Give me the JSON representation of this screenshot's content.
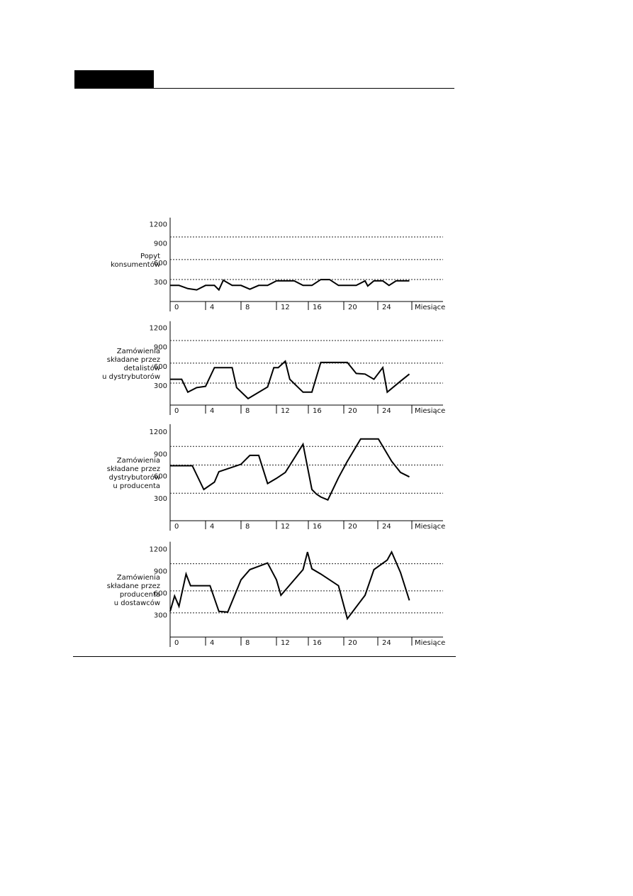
{
  "chart_data": [
    {
      "type": "line",
      "ylabel": [
        "Popyt",
        "konsumentów"
      ],
      "xlabel": "Miesiące",
      "x_ticks": [
        "0",
        "4",
        "8",
        "12",
        "16",
        "20",
        "24"
      ],
      "y_ticks": [
        "1200",
        "900",
        "600",
        "300"
      ],
      "ylim": [
        0,
        1300
      ],
      "gridlines": [
        1000,
        650,
        340
      ],
      "series": [
        {
          "x": [
            0,
            1,
            2,
            3,
            4,
            5,
            5.5,
            6,
            7,
            8,
            9,
            10,
            11,
            12,
            13,
            14,
            15,
            16,
            17,
            18,
            19,
            20,
            21,
            22,
            22.3,
            23,
            24,
            24.7,
            25.5,
            27
          ],
          "y": [
            250,
            250,
            200,
            180,
            250,
            250,
            180,
            330,
            250,
            250,
            190,
            250,
            250,
            320,
            320,
            320,
            250,
            250,
            340,
            340,
            250,
            250,
            250,
            320,
            240,
            320,
            320,
            250,
            320,
            320
          ]
        }
      ]
    },
    {
      "type": "line",
      "ylabel": [
        "Zamówienia",
        "składane przez",
        "detalistów",
        "u dystrybutorów"
      ],
      "xlabel": "Miesiące",
      "x_ticks": [
        "0",
        "4",
        "8",
        "12",
        "16",
        "20",
        "24"
      ],
      "y_ticks": [
        "1200",
        "900",
        "600",
        "300"
      ],
      "ylim": [
        0,
        1300
      ],
      "gridlines": [
        1000,
        650,
        340
      ],
      "series": [
        {
          "x": [
            0,
            1.3,
            2,
            3,
            4,
            5,
            7,
            7.5,
            8.8,
            11,
            11.7,
            12.2,
            13,
            13.5,
            15,
            16,
            17,
            20,
            21,
            22,
            23,
            24,
            24.5,
            26,
            27
          ],
          "y": [
            400,
            400,
            200,
            270,
            290,
            580,
            580,
            270,
            100,
            280,
            580,
            580,
            680,
            400,
            200,
            200,
            660,
            660,
            490,
            480,
            400,
            580,
            200,
            370,
            480
          ]
        }
      ]
    },
    {
      "type": "line",
      "ylabel": [
        "Zamówienia",
        "składane przez",
        "dystrybutorów",
        "u producenta"
      ],
      "xlabel": "Miesiące",
      "x_ticks": [
        "0",
        "4",
        "8",
        "12",
        "16",
        "20",
        "24"
      ],
      "y_ticks": [
        "1200",
        "900",
        "600",
        "300"
      ],
      "ylim": [
        0,
        1300
      ],
      "gridlines": [
        1000,
        750,
        370
      ],
      "series": [
        {
          "x": [
            0,
            2.5,
            3.8,
            5,
            5.5,
            8,
            9,
            10,
            11,
            12,
            13,
            15,
            16,
            16.5,
            17,
            17.8,
            19,
            20,
            21.5,
            23.5,
            25,
            26,
            27
          ],
          "y": [
            740,
            740,
            420,
            520,
            660,
            760,
            880,
            880,
            500,
            570,
            650,
            1030,
            420,
            360,
            320,
            280,
            580,
            800,
            1100,
            1100,
            800,
            650,
            590
          ]
        }
      ]
    },
    {
      "type": "line",
      "ylabel": [
        "Zamówienia",
        "składane przez",
        "producenta",
        "u dostawców"
      ],
      "xlabel": "Miesiące",
      "x_ticks": [
        "0",
        "4",
        "8",
        "12",
        "16",
        "20",
        "24"
      ],
      "y_ticks": [
        "1200",
        "900",
        "600",
        "300"
      ],
      "ylim": [
        0,
        1300
      ],
      "gridlines": [
        1000,
        630,
        330
      ],
      "series": [
        {
          "x": [
            0,
            0.5,
            1,
            1.8,
            2.3,
            4.5,
            5.5,
            6.5,
            8,
            9,
            11,
            12,
            12.5,
            15,
            15.5,
            16,
            17,
            19,
            20,
            22,
            23,
            24.5,
            25,
            26,
            27
          ],
          "y": [
            350,
            560,
            420,
            860,
            700,
            700,
            350,
            340,
            780,
            920,
            1010,
            780,
            570,
            920,
            1160,
            930,
            860,
            700,
            250,
            570,
            920,
            1050,
            1160,
            880,
            500
          ]
        }
      ]
    }
  ]
}
